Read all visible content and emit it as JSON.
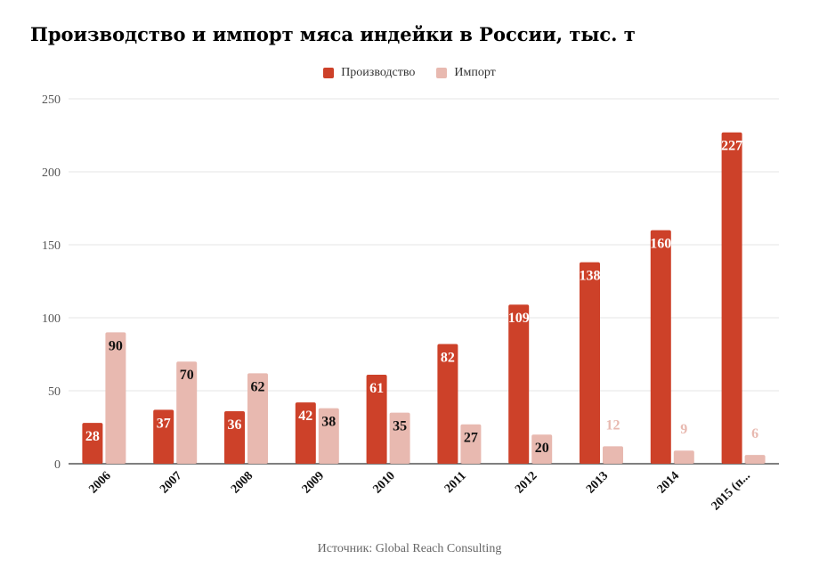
{
  "title": "Производство и импорт мяса индейки в России, тыс. т",
  "source": "Источник: Global Reach Consulting",
  "colors": {
    "production": "#cd4129",
    "import": "#e8b9b0",
    "grid": "#e6e6e6",
    "axis": "#333333"
  },
  "chart_data": {
    "type": "bar",
    "title": "Производство и импорт мяса индейки в России, тыс. т",
    "categories": [
      "2006",
      "2007",
      "2008",
      "2009",
      "2010",
      "2011",
      "2012",
      "2013",
      "2014",
      "2015 (п..."
    ],
    "series": [
      {
        "name": "Производство",
        "values": [
          28,
          37,
          36,
          42,
          61,
          82,
          109,
          138,
          160,
          227
        ]
      },
      {
        "name": "Импорт",
        "values": [
          90,
          70,
          62,
          38,
          35,
          27,
          20,
          12,
          9,
          6
        ]
      }
    ],
    "ylim": [
      0,
      250
    ],
    "yticks": [
      0,
      50,
      100,
      150,
      200,
      250
    ],
    "grid": true,
    "legend": "top-center"
  }
}
